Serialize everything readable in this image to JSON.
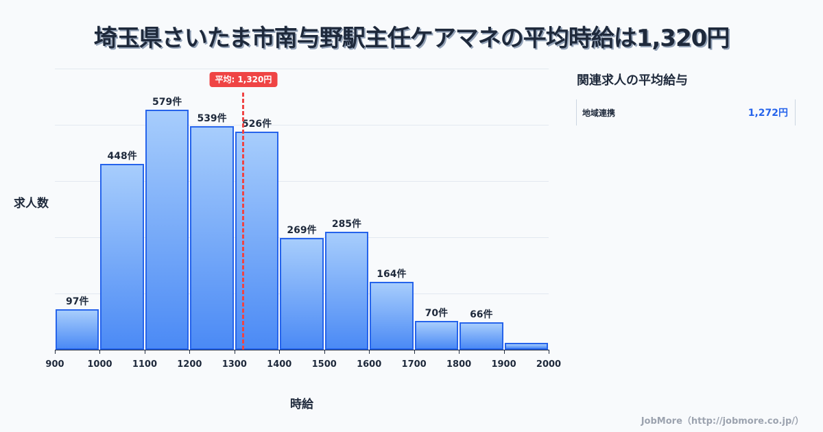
{
  "title": "埼玉県さいたま市南与野駅主任ケアマネの平均時給は1,320円",
  "chart_data": {
    "type": "bar",
    "title": "埼玉県さいたま市南与野駅主任ケアマネの平均時給は1,320円",
    "xlabel": "時給",
    "ylabel": "求人数",
    "categories": [
      "900-1000",
      "1000-1100",
      "1100-1200",
      "1200-1300",
      "1300-1400",
      "1400-1500",
      "1500-1600",
      "1600-1700",
      "1700-1800",
      "1800-1900",
      "1900-2000"
    ],
    "values": [
      97,
      448,
      579,
      539,
      526,
      269,
      285,
      164,
      70,
      66,
      16
    ],
    "labels": [
      "97件",
      "448件",
      "579件",
      "539件",
      "526件",
      "269件",
      "285件",
      "164件",
      "70件",
      "66件",
      ""
    ],
    "x_ticks": [
      "900",
      "1000",
      "1100",
      "1200",
      "1300",
      "1400",
      "1500",
      "1600",
      "1700",
      "1800",
      "1900",
      "2000"
    ],
    "xlim": [
      900,
      2000
    ],
    "ylim": [
      0,
      678
    ],
    "grid": true,
    "mean": {
      "value": 1320,
      "label": "平均: 1,320円",
      "color": "#ef4444"
    },
    "bar_color": "#4b8af5",
    "bar_border_color": "#2563eb"
  },
  "sidebar": {
    "title": "関連求人の平均給与",
    "items": [
      {
        "label": "地域連携",
        "value": "1,272円"
      }
    ]
  },
  "footer": "JobMore（http://jobmore.co.jp/）"
}
